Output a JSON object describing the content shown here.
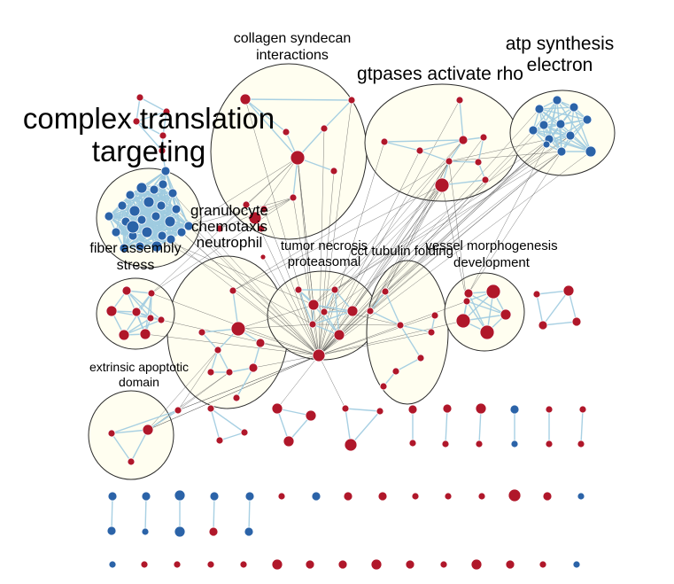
{
  "colors": {
    "up": "#b0172a",
    "down": "#2b63a8",
    "edge_intra": "#9ecbe0",
    "edge_inter": "#4a4a4a",
    "cluster_fill": "#fffef0"
  },
  "clusters": [
    {
      "id": "translation",
      "lines": [
        "complex translation",
        "targeting"
      ]
    },
    {
      "id": "collagen",
      "lines": [
        "collagen syndecan",
        "interactions"
      ]
    },
    {
      "id": "gtpases",
      "lines": [
        "gtpases activate rho"
      ]
    },
    {
      "id": "atp",
      "lines": [
        "atp synthesis",
        "electron"
      ]
    },
    {
      "id": "granulocyte",
      "lines": [
        "granulocyte",
        "chemotaxis",
        "neutrophil"
      ]
    },
    {
      "id": "fiber",
      "lines": [
        "fiber assembly",
        "stress"
      ]
    },
    {
      "id": "tumor",
      "lines": [
        "tumor necrosis",
        "proteasomal"
      ]
    },
    {
      "id": "cct",
      "lines": [
        "cct tubulin folding"
      ]
    },
    {
      "id": "vessel",
      "lines": [
        "vessel morphogenesis",
        "development"
      ]
    },
    {
      "id": "extrinsic",
      "lines": [
        "extrinsic apoptotic",
        "domain"
      ]
    }
  ]
}
